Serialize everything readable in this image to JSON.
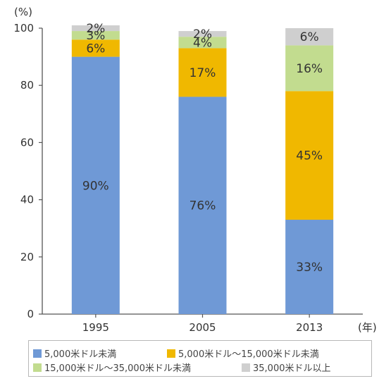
{
  "chart_data": {
    "type": "bar",
    "stacked": true,
    "y_unit_label": "(%)",
    "x_unit_label": "(年)",
    "ylim": [
      0,
      100
    ],
    "yticks": [
      0,
      20,
      40,
      60,
      80,
      100
    ],
    "categories": [
      "1995",
      "2005",
      "2013"
    ],
    "series": [
      {
        "name": "5,000米ドル未満",
        "color": "#6f99d6",
        "values": [
          90,
          76,
          33
        ],
        "labels": [
          "90%",
          "76%",
          "33%"
        ]
      },
      {
        "name": "5,000米ドル～15,000米ドル未満",
        "color": "#f0b800",
        "values": [
          6,
          17,
          45
        ],
        "labels": [
          "6%",
          "17%",
          "45%"
        ]
      },
      {
        "name": "15,000米ドル～35,000米ドル未満",
        "color": "#c2dc8f",
        "values": [
          3,
          4,
          16
        ],
        "labels": [
          "3%",
          "4%",
          "16%"
        ]
      },
      {
        "name": "35,000米ドル以上",
        "color": "#cfcfcf",
        "values": [
          2,
          2,
          6
        ],
        "labels": [
          "2%",
          "2%",
          "6%"
        ]
      }
    ],
    "grid": false,
    "legend_position": "bottom"
  }
}
